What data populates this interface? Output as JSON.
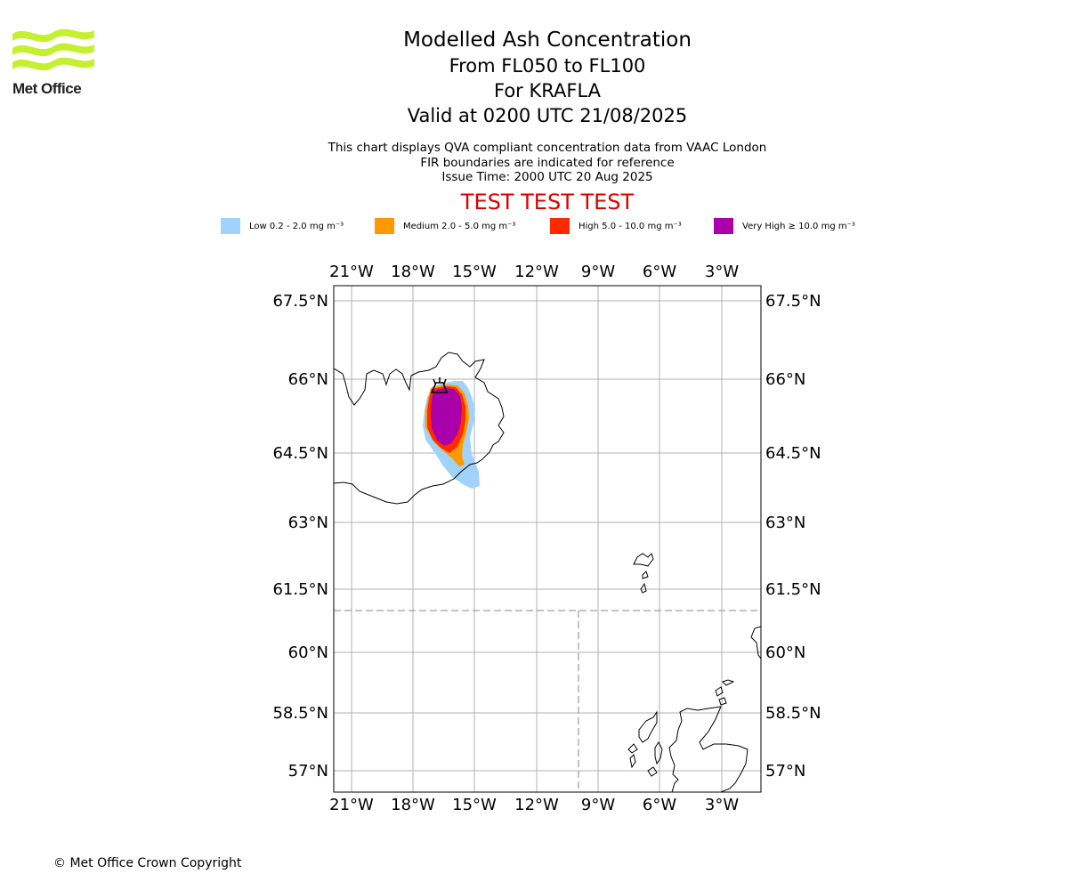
{
  "logo": {
    "text": "Met Office",
    "color": "#c5f02f"
  },
  "title": {
    "line1": "Modelled Ash Concentration",
    "line2": "From FL050 to FL100",
    "line3": "For KRAFLA",
    "line4": "Valid at 0200 UTC 21/08/2025"
  },
  "subtitle": {
    "line1": "This chart displays QVA compliant concentration data from VAAC London",
    "line2": "FIR boundaries are indicated for reference",
    "line3": "Issue Time: 2000 UTC 20 Aug 2025"
  },
  "banner": {
    "text": "TEST TEST TEST",
    "color": "#dd0000"
  },
  "legend": [
    {
      "label": "Low 0.2 - 2.0 mg m⁻³",
      "color": "#a0d2fa"
    },
    {
      "label": "Medium 2.0 - 5.0 mg m⁻³",
      "color": "#ff9900"
    },
    {
      "label": "High 5.0 - 10.0 mg m⁻³",
      "color": "#ff2a00"
    },
    {
      "label": "Very High ≥ 10.0 mg m⁻³",
      "color": "#aa00aa"
    }
  ],
  "map": {
    "lon_ticks": [
      "21°W",
      "18°W",
      "15°W",
      "12°W",
      "9°W",
      "6°W",
      "3°W"
    ],
    "lat_ticks": [
      "67.5°N",
      "66°N",
      "64.5°N",
      "63°N",
      "61.5°N",
      "60°N",
      "58.5°N",
      "57°N"
    ],
    "volcano_symbol": "volcano-icon"
  },
  "footer": {
    "copyright": "© Met Office Crown Copyright"
  }
}
